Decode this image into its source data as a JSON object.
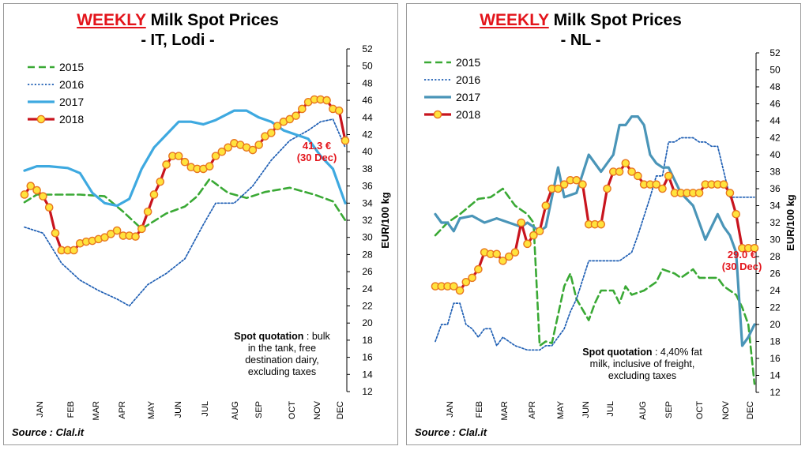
{
  "charts": [
    {
      "title_highlight": "WEEKLY",
      "title_rest": " Milk Spot Prices",
      "subtitle": "- IT, Lodi -",
      "source": "Source : Clal.it",
      "note_bold": "Spot quotation",
      "note_lines": [
        " : bulk",
        "in the tank, free",
        "destination dairy,",
        "excluding taxes"
      ],
      "annotation_lines": [
        "41.3 €",
        "(30 Dec)"
      ]
    },
    {
      "title_highlight": "WEEKLY",
      "title_rest": " Milk Spot Prices",
      "subtitle": "- NL -",
      "source": "Source : Clal.it",
      "note_bold": "Spot quotation",
      "note_lines": [
        " : 4,40% fat",
        "milk, inclusive of freight,",
        "excluding  taxes"
      ],
      "annotation_lines": [
        "29.0 €",
        "(30 Dec)"
      ]
    }
  ],
  "chart_data": [
    {
      "type": "line",
      "title": "WEEKLY Milk Spot Prices - IT, Lodi -",
      "ylabel": "EUR/100 kg",
      "ylim": [
        12,
        52
      ],
      "yticks": [
        12,
        14,
        16,
        18,
        20,
        22,
        24,
        26,
        28,
        30,
        32,
        34,
        36,
        38,
        40,
        42,
        44,
        46,
        48,
        50,
        52
      ],
      "x_axis": "week of year",
      "xlim": [
        1,
        53
      ],
      "month_labels": [
        "JAN",
        "FEB",
        "MAR",
        "APR",
        "MAY",
        "JUN",
        "JUL",
        "AUG",
        "SEP",
        "OCT",
        "NOV",
        "DEC"
      ],
      "legend_position": "top-left",
      "series": [
        {
          "name": "2015",
          "color": "#3aa935",
          "style": "dashed",
          "x": [
            1,
            3,
            6,
            10,
            14,
            17,
            20,
            24,
            27,
            29,
            31,
            34,
            37,
            40,
            44,
            48,
            51,
            53
          ],
          "y": [
            34.1,
            35.0,
            35.0,
            35.0,
            34.8,
            33.0,
            31.0,
            32.8,
            33.6,
            34.8,
            36.8,
            35.2,
            34.6,
            35.3,
            35.8,
            35.0,
            34.2,
            32.0
          ]
        },
        {
          "name": "2016",
          "color": "#1f5fb4",
          "style": "dotted",
          "x": [
            1,
            4,
            7,
            10,
            13,
            16,
            18,
            21,
            24,
            27,
            30,
            32,
            35,
            38,
            41,
            44,
            47,
            49,
            51,
            53
          ],
          "y": [
            31.2,
            30.5,
            27.0,
            25.0,
            23.8,
            22.8,
            22.0,
            24.5,
            25.8,
            27.5,
            31.5,
            34.0,
            34.0,
            36.0,
            39.0,
            41.3,
            42.5,
            43.5,
            43.8,
            40.5
          ]
        },
        {
          "name": "2017",
          "color": "#3ea9e0",
          "style": "solid",
          "x": [
            1,
            3,
            5,
            8,
            10,
            12,
            14,
            16,
            18,
            20,
            22,
            24,
            26,
            28,
            30,
            32,
            35,
            37,
            39,
            41,
            43,
            45,
            47,
            49,
            51,
            53
          ],
          "y": [
            37.8,
            38.3,
            38.3,
            38.1,
            37.5,
            35.2,
            34.0,
            33.7,
            34.5,
            38.0,
            40.5,
            42.0,
            43.5,
            43.5,
            43.2,
            43.7,
            44.8,
            44.8,
            44.0,
            43.5,
            42.5,
            42.0,
            41.5,
            39.5,
            38.0,
            34.0
          ]
        },
        {
          "name": "2018",
          "color": "#c8141e",
          "style": "solid-markers",
          "x": [
            1,
            2,
            3,
            4,
            5,
            6,
            7,
            8,
            9,
            10,
            11,
            12,
            13,
            14,
            15,
            16,
            17,
            18,
            19,
            20,
            21,
            22,
            23,
            24,
            25,
            26,
            27,
            28,
            29,
            30,
            31,
            32,
            33,
            34,
            35,
            36,
            37,
            38,
            39,
            40,
            41,
            42,
            43,
            44,
            45,
            46,
            47,
            48,
            49,
            50,
            51,
            52,
            53
          ],
          "y": [
            35.0,
            36.0,
            35.5,
            34.8,
            33.5,
            30.5,
            28.5,
            28.5,
            28.5,
            29.3,
            29.5,
            29.6,
            29.8,
            30.0,
            30.4,
            30.8,
            30.2,
            30.2,
            30.1,
            31.0,
            33.0,
            35.0,
            36.5,
            38.5,
            39.5,
            39.5,
            38.8,
            38.2,
            38.0,
            38.0,
            38.3,
            39.5,
            40.0,
            40.5,
            41.0,
            40.8,
            40.5,
            40.2,
            40.8,
            41.8,
            42.2,
            43.0,
            43.5,
            43.8,
            44.2,
            45.0,
            45.8,
            46.1,
            46.1,
            46.0,
            45.0,
            44.8,
            41.3
          ]
        }
      ],
      "annotations": [
        "41.3 € (30 Dec)",
        "Spot quotation : bulk in the tank, free destination dairy, excluding taxes"
      ]
    },
    {
      "type": "line",
      "title": "WEEKLY Milk Spot Prices - NL -",
      "ylabel": "EUR/100 kg",
      "ylim": [
        12,
        52
      ],
      "yticks": [
        12,
        14,
        16,
        18,
        20,
        22,
        24,
        26,
        28,
        30,
        32,
        34,
        36,
        38,
        40,
        42,
        44,
        46,
        48,
        50,
        52
      ],
      "x_axis": "week of year",
      "xlim": [
        1,
        53
      ],
      "month_labels": [
        "JAN",
        "FEB",
        "MAR",
        "APR",
        "MAY",
        "JUN",
        "JUL",
        "AUG",
        "SEP",
        "OCT",
        "NOV",
        "DEC"
      ],
      "legend_position": "top-left",
      "series": [
        {
          "name": "2015",
          "color": "#3aa935",
          "style": "dashed",
          "x": [
            1,
            3,
            5,
            8,
            10,
            12,
            13,
            14,
            16,
            17,
            18,
            19,
            20,
            22,
            23,
            24,
            26,
            27,
            28,
            30,
            31,
            32,
            33,
            35,
            37,
            38,
            40,
            41,
            43,
            44,
            45,
            47,
            48,
            49,
            50,
            51,
            52,
            53
          ],
          "y": [
            30.5,
            32.0,
            33.0,
            34.8,
            35.0,
            36.0,
            35.0,
            34.0,
            33.0,
            32.0,
            17.5,
            18.0,
            17.8,
            24.5,
            26.0,
            23.0,
            20.5,
            22.5,
            24.0,
            24.0,
            22.5,
            24.5,
            23.5,
            24.0,
            25.0,
            26.5,
            26.0,
            25.5,
            26.5,
            25.5,
            25.5,
            25.5,
            24.5,
            24.0,
            23.5,
            22.0,
            20.0,
            13.0
          ]
        },
        {
          "name": "2016",
          "color": "#1f5fb4",
          "style": "dotted",
          "x": [
            1,
            2,
            3,
            4,
            5,
            6,
            7,
            8,
            9,
            10,
            11,
            12,
            13,
            14,
            16,
            18,
            19,
            20,
            22,
            23,
            24,
            26,
            27,
            28,
            30,
            31,
            33,
            34,
            36,
            37,
            38,
            39,
            40,
            41,
            43,
            44,
            45,
            46,
            47,
            49,
            50,
            51,
            53
          ],
          "y": [
            18.0,
            20.0,
            20.0,
            22.5,
            22.5,
            20.0,
            19.5,
            18.5,
            19.5,
            19.5,
            17.5,
            18.5,
            18.0,
            17.5,
            17.0,
            17.0,
            17.5,
            17.5,
            19.5,
            21.5,
            23.0,
            27.5,
            27.5,
            27.5,
            27.5,
            27.5,
            28.5,
            30.5,
            35.0,
            37.5,
            37.5,
            41.5,
            41.5,
            42.0,
            42.0,
            41.5,
            41.5,
            41.0,
            41.0,
            35.0,
            35.0,
            35.0,
            35.0
          ]
        },
        {
          "name": "2017",
          "color": "#4a95b8",
          "style": "solid",
          "x": [
            1,
            2,
            3,
            4,
            5,
            7,
            9,
            11,
            13,
            15,
            16,
            17,
            18,
            19,
            20,
            21,
            22,
            24,
            26,
            28,
            30,
            31,
            32,
            33,
            34,
            35,
            36,
            37,
            38,
            39,
            40,
            41,
            43,
            44,
            45,
            47,
            48,
            49,
            50,
            51,
            52,
            53
          ],
          "y": [
            33.0,
            32.0,
            32.0,
            31.0,
            32.5,
            32.8,
            32.0,
            32.5,
            32.0,
            31.5,
            32.0,
            31.5,
            31.0,
            31.5,
            35.0,
            38.5,
            35.0,
            35.5,
            40.0,
            38.0,
            40.0,
            43.5,
            43.5,
            44.5,
            44.5,
            43.5,
            40.0,
            39.0,
            38.5,
            38.5,
            37.0,
            35.5,
            34.0,
            32.0,
            30.0,
            33.0,
            31.5,
            30.5,
            28.5,
            17.5,
            18.5,
            20.0
          ]
        },
        {
          "name": "2018",
          "color": "#c8141e",
          "style": "solid-markers",
          "x": [
            1,
            2,
            3,
            4,
            5,
            6,
            7,
            8,
            9,
            10,
            11,
            12,
            13,
            14,
            15,
            16,
            17,
            18,
            19,
            20,
            21,
            22,
            23,
            24,
            25,
            26,
            27,
            28,
            29,
            30,
            31,
            32,
            33,
            34,
            35,
            36,
            37,
            38,
            39,
            40,
            41,
            42,
            43,
            44,
            45,
            46,
            47,
            48,
            49,
            50,
            51,
            52,
            53
          ],
          "y": [
            24.5,
            24.5,
            24.5,
            24.5,
            24.0,
            25.0,
            25.5,
            26.5,
            28.5,
            28.3,
            28.3,
            27.5,
            28.0,
            28.5,
            32.0,
            29.5,
            30.5,
            31.0,
            34.0,
            36.0,
            36.0,
            36.5,
            37.0,
            37.0,
            36.5,
            31.8,
            31.8,
            31.8,
            36.0,
            38.0,
            38.0,
            39.0,
            38.0,
            37.5,
            36.5,
            36.5,
            36.5,
            36.0,
            37.5,
            35.5,
            35.5,
            35.5,
            35.5,
            35.5,
            36.5,
            36.5,
            36.5,
            36.5,
            35.5,
            33.0,
            29.0,
            29.0,
            29.0
          ]
        }
      ],
      "annotations": [
        "29.0 € (30 Dec)",
        "Spot quotation : 4,40% fat milk, inclusive of freight, excluding taxes"
      ]
    }
  ]
}
